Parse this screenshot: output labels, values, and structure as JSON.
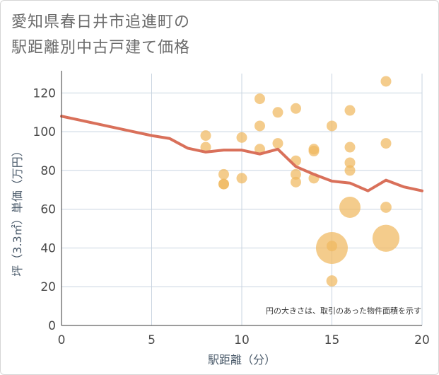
{
  "title": {
    "line1": "愛知県春日井市追進町の",
    "line2": "駅距離別中古戸建て価格"
  },
  "colors": {
    "line": "#d9705a",
    "bubble": "#f0b860",
    "grid": "#c8d4e0",
    "axis": "#3a3a3a"
  },
  "chart_data": {
    "type": "scatter",
    "xlabel": "駅距離（分）",
    "ylabel": "坪（3.3㎡）単価（万円）",
    "xlim": [
      0,
      20
    ],
    "ylim": [
      0,
      130
    ],
    "xticks": [
      0,
      5,
      10,
      15,
      20
    ],
    "yticks": [
      0,
      20,
      40,
      60,
      80,
      100,
      120
    ],
    "grid": true,
    "note": "円の大きさは、取引のあった物件面積を示す",
    "line_series": {
      "x": [
        0,
        1,
        2,
        3,
        4,
        5,
        6,
        7,
        8,
        9,
        10,
        11,
        12,
        13,
        14,
        15,
        16,
        17,
        18,
        19,
        20
      ],
      "y": [
        108,
        106,
        104,
        102,
        100,
        98,
        96.5,
        91.5,
        89.5,
        90.5,
        90.5,
        88.5,
        91,
        82,
        78,
        74.5,
        73.5,
        69.5,
        75,
        71.5,
        69.5
      ]
    },
    "bubbles": [
      {
        "x": 8,
        "y": 98,
        "size": 1
      },
      {
        "x": 8,
        "y": 92,
        "size": 1
      },
      {
        "x": 9,
        "y": 78,
        "size": 1
      },
      {
        "x": 9,
        "y": 73,
        "size": 1
      },
      {
        "x": 9,
        "y": 73,
        "size": 1
      },
      {
        "x": 10,
        "y": 97,
        "size": 1
      },
      {
        "x": 10,
        "y": 76,
        "size": 1
      },
      {
        "x": 11,
        "y": 117,
        "size": 1
      },
      {
        "x": 11,
        "y": 103,
        "size": 1
      },
      {
        "x": 11,
        "y": 91,
        "size": 1
      },
      {
        "x": 12,
        "y": 110,
        "size": 1
      },
      {
        "x": 12,
        "y": 94,
        "size": 1
      },
      {
        "x": 13,
        "y": 112,
        "size": 1
      },
      {
        "x": 13,
        "y": 85,
        "size": 1
      },
      {
        "x": 13,
        "y": 78,
        "size": 1
      },
      {
        "x": 13,
        "y": 74,
        "size": 1
      },
      {
        "x": 14,
        "y": 91,
        "size": 1
      },
      {
        "x": 14,
        "y": 90,
        "size": 1
      },
      {
        "x": 14,
        "y": 76,
        "size": 1
      },
      {
        "x": 15,
        "y": 103,
        "size": 1
      },
      {
        "x": 15,
        "y": 40,
        "size": 9
      },
      {
        "x": 15,
        "y": 41,
        "size": 1
      },
      {
        "x": 15,
        "y": 23,
        "size": 1.1
      },
      {
        "x": 16,
        "y": 111,
        "size": 1
      },
      {
        "x": 16,
        "y": 92,
        "size": 1
      },
      {
        "x": 16,
        "y": 84,
        "size": 1
      },
      {
        "x": 16,
        "y": 80,
        "size": 1
      },
      {
        "x": 16,
        "y": 61,
        "size": 4
      },
      {
        "x": 18,
        "y": 126,
        "size": 1
      },
      {
        "x": 18,
        "y": 94,
        "size": 1
      },
      {
        "x": 18,
        "y": 61,
        "size": 1.1
      },
      {
        "x": 18,
        "y": 45,
        "size": 6.5
      }
    ]
  }
}
